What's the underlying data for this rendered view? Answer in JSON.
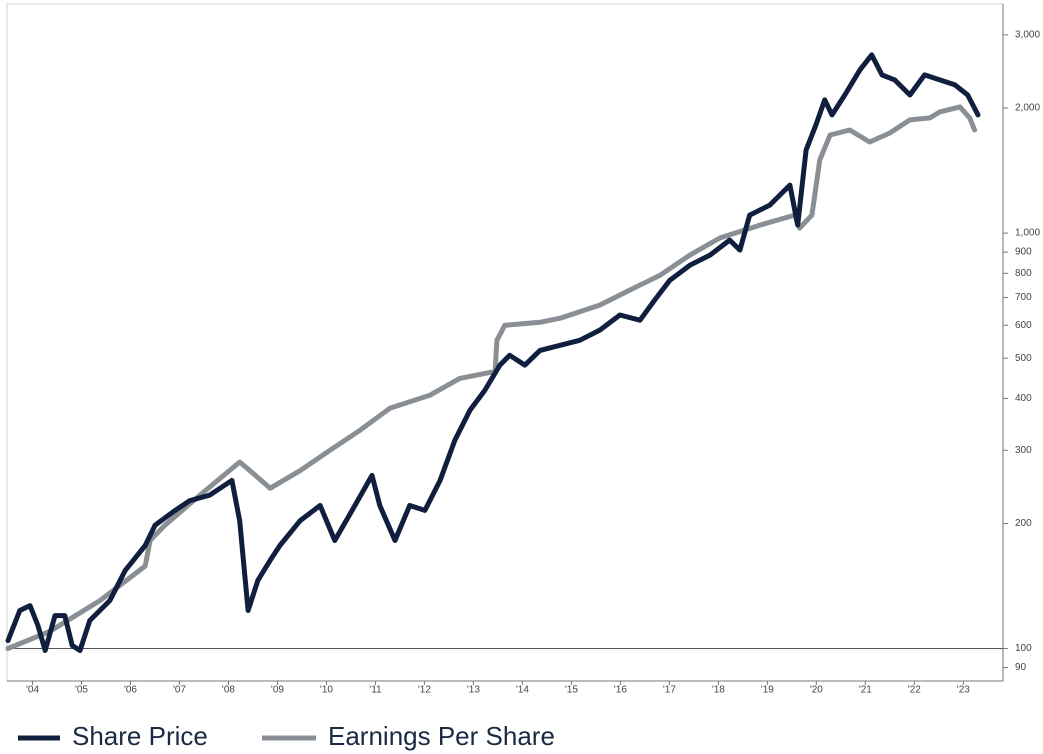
{
  "chart_data": {
    "type": "line",
    "log_scale": true,
    "xlim": [
      2004.0,
      2024.31
    ],
    "ylim": [
      84,
      3540
    ],
    "reference_line": 100,
    "xticks": [
      {
        "value": 2004.5,
        "label": "'04"
      },
      {
        "value": 2005.5,
        "label": "'05"
      },
      {
        "value": 2006.5,
        "label": "'06"
      },
      {
        "value": 2007.5,
        "label": "'07"
      },
      {
        "value": 2008.5,
        "label": "'08"
      },
      {
        "value": 2009.5,
        "label": "'09"
      },
      {
        "value": 2010.5,
        "label": "'10"
      },
      {
        "value": 2011.5,
        "label": "'11"
      },
      {
        "value": 2012.5,
        "label": "'12"
      },
      {
        "value": 2013.5,
        "label": "'13"
      },
      {
        "value": 2014.5,
        "label": "'14"
      },
      {
        "value": 2015.5,
        "label": "'15"
      },
      {
        "value": 2016.5,
        "label": "'16"
      },
      {
        "value": 2017.5,
        "label": "'17"
      },
      {
        "value": 2018.5,
        "label": "'18"
      },
      {
        "value": 2019.5,
        "label": "'19"
      },
      {
        "value": 2020.5,
        "label": "'20"
      },
      {
        "value": 2021.5,
        "label": "'21"
      },
      {
        "value": 2022.5,
        "label": "'22"
      },
      {
        "value": 2023.5,
        "label": "'23"
      }
    ],
    "yticks": [
      90,
      100,
      200,
      300,
      400,
      500,
      600,
      700,
      800,
      900,
      {
        "value": 1000,
        "label": "1,000"
      },
      {
        "value": 2000,
        "label": "2,000"
      },
      {
        "value": 3000,
        "label": "3,000"
      }
    ],
    "series": [
      {
        "name": "Share Price",
        "color": "#0f1f3d",
        "x": [
          2004.0,
          2004.24,
          2004.45,
          2004.61,
          2004.76,
          2004.96,
          2005.16,
          2005.31,
          2005.47,
          2005.67,
          2006.08,
          2006.39,
          2006.8,
          2007.0,
          2007.41,
          2007.71,
          2008.12,
          2008.57,
          2008.73,
          2008.9,
          2009.1,
          2009.35,
          2009.55,
          2009.96,
          2010.37,
          2010.67,
          2011.08,
          2011.43,
          2011.59,
          2011.9,
          2012.2,
          2012.51,
          2012.82,
          2013.12,
          2013.43,
          2013.73,
          2014.04,
          2014.24,
          2014.55,
          2014.86,
          2015.27,
          2015.67,
          2016.08,
          2016.49,
          2016.9,
          2017.2,
          2017.51,
          2017.92,
          2018.33,
          2018.73,
          2018.94,
          2019.14,
          2019.55,
          2019.96,
          2020.12,
          2020.29,
          2020.49,
          2020.67,
          2020.82,
          2021.08,
          2021.39,
          2021.63,
          2021.84,
          2022.1,
          2022.41,
          2022.71,
          2023.02,
          2023.33,
          2023.59,
          2023.8
        ],
        "values": [
          104.5,
          123.5,
          126.9,
          113.6,
          98.9,
          120,
          120,
          101.7,
          98.9,
          116.8,
          130.5,
          154,
          177,
          198,
          215,
          227,
          234,
          254,
          203,
          123.5,
          146,
          163,
          177,
          203,
          221,
          182,
          221,
          261,
          221,
          182,
          221,
          215,
          254,
          317,
          375,
          418,
          481,
          508,
          481,
          522,
          537,
          552,
          584,
          635,
          617,
          690,
          770,
          837,
          885,
          962,
          910,
          1105,
          1168,
          1305,
          1045,
          1585,
          1821,
          2092,
          1925,
          2150,
          2471,
          2685,
          2403,
          2337,
          2150,
          2403,
          2337,
          2273,
          2150,
          1925
        ]
      },
      {
        "name": "Earnings Per Share",
        "color": "#8a8f96",
        "x": [
          2004.0,
          2004.86,
          2005.88,
          2006.8,
          2006.9,
          2007.2,
          2007.92,
          2008.73,
          2008.94,
          2009.35,
          2009.96,
          2010.57,
          2011.18,
          2011.8,
          2012.61,
          2013.22,
          2013.84,
          2013.94,
          2013.98,
          2014.14,
          2014.86,
          2015.27,
          2016.08,
          2016.69,
          2017.31,
          2017.92,
          2018.53,
          2019.35,
          2020.06,
          2020.16,
          2020.41,
          2020.57,
          2020.78,
          2021.18,
          2021.59,
          2022.0,
          2022.41,
          2022.82,
          2023.02,
          2023.43,
          2023.63,
          2023.73
        ],
        "values": [
          100,
          110,
          130.5,
          158,
          182,
          198,
          234,
          281,
          268,
          243,
          268,
          300,
          335,
          379,
          407,
          447,
          462,
          462,
          552,
          600,
          610,
          624,
          671,
          729,
          792,
          885,
          973,
          1045,
          1105,
          1028,
          1105,
          1500,
          1722,
          1771,
          1657,
          1741,
          1873,
          1893,
          1957,
          2012,
          1893,
          1771
        ]
      }
    ]
  }
}
